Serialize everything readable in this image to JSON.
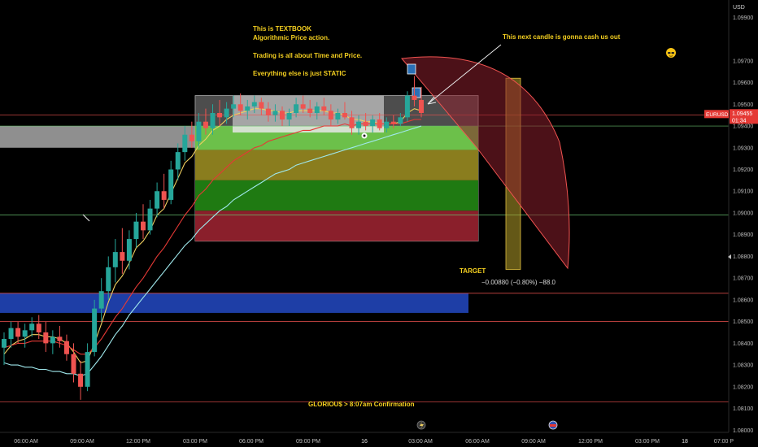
{
  "axis": {
    "currency_label": "USD",
    "y_ticks": [
      "1.09900",
      "1.09700",
      "1.09600",
      "1.09500",
      "1.09400",
      "1.09300",
      "1.09200",
      "1.09100",
      "1.09000",
      "1.08900",
      "1.08800",
      "1.08700",
      "1.08600",
      "1.08500",
      "1.08400",
      "1.08300",
      "1.08200",
      "1.08100",
      "1.08000"
    ],
    "x_ticks": [
      "06:00 AM",
      "09:00 AM",
      "12:00 PM",
      "03:00 PM",
      "06:00 PM",
      "09:00 PM",
      "16",
      "03:00 AM",
      "06:00 AM",
      "09:00 AM",
      "12:00 PM",
      "03:00 PM",
      "18",
      "07:00 P"
    ]
  },
  "price_tag": {
    "symbol": "EURUSD",
    "price": "1.09455",
    "countdown": "01:34"
  },
  "annotations": {
    "main_text": "This is TEXTBOOK\nAlgorithmic Price action.\n\nTrading is all about Time and Price.\n\nEverything else is just STATIC",
    "arrow_text": "This next candle is gonna cash us out",
    "target_label": "TARGET",
    "target_measure": "−0.00880 (−0.80%) −88.0",
    "confirmation_text": "GLORIOU$ > 8:07am Confirmation"
  },
  "colors": {
    "bull": "#26a69a",
    "bear": "#ef5350",
    "ma_red": "#e53935",
    "ma_yellow": "#f0d060",
    "ma_cyan": "#9fe8ec",
    "accent_text": "#f5d020",
    "blue_zone": "#1e3ea6",
    "hline": "#e53935"
  },
  "chart_data": {
    "type": "candlestick",
    "symbol": "EURUSD",
    "y_axis_range": [
      1.0799,
      1.0995
    ],
    "last_price": 1.09455,
    "candles": [
      {
        "o": 1.0838,
        "h": 1.0845,
        "l": 1.083,
        "c": 1.0842
      },
      {
        "o": 1.0842,
        "h": 1.085,
        "l": 1.0838,
        "c": 1.0847
      },
      {
        "o": 1.0847,
        "h": 1.085,
        "l": 1.084,
        "c": 1.0843
      },
      {
        "o": 1.0843,
        "h": 1.0849,
        "l": 1.0838,
        "c": 1.0846
      },
      {
        "o": 1.0846,
        "h": 1.0852,
        "l": 1.0843,
        "c": 1.0849
      },
      {
        "o": 1.0849,
        "h": 1.0853,
        "l": 1.0842,
        "c": 1.0845
      },
      {
        "o": 1.0845,
        "h": 1.085,
        "l": 1.0836,
        "c": 1.084
      },
      {
        "o": 1.084,
        "h": 1.0846,
        "l": 1.0835,
        "c": 1.0843
      },
      {
        "o": 1.0843,
        "h": 1.0848,
        "l": 1.0838,
        "c": 1.0841
      },
      {
        "o": 1.0841,
        "h": 1.0844,
        "l": 1.0832,
        "c": 1.0835
      },
      {
        "o": 1.0835,
        "h": 1.084,
        "l": 1.0822,
        "c": 1.0826
      },
      {
        "o": 1.0826,
        "h": 1.0832,
        "l": 1.0814,
        "c": 1.082
      },
      {
        "o": 1.082,
        "h": 1.084,
        "l": 1.0818,
        "c": 1.0836
      },
      {
        "o": 1.0836,
        "h": 1.086,
        "l": 1.0834,
        "c": 1.0856
      },
      {
        "o": 1.0856,
        "h": 1.087,
        "l": 1.085,
        "c": 1.0864
      },
      {
        "o": 1.0864,
        "h": 1.088,
        "l": 1.086,
        "c": 1.0875
      },
      {
        "o": 1.0875,
        "h": 1.0888,
        "l": 1.0868,
        "c": 1.0882
      },
      {
        "o": 1.0882,
        "h": 1.0893,
        "l": 1.0872,
        "c": 1.0878
      },
      {
        "o": 1.0878,
        "h": 1.0892,
        "l": 1.0874,
        "c": 1.0888
      },
      {
        "o": 1.0888,
        "h": 1.09,
        "l": 1.0884,
        "c": 1.0896
      },
      {
        "o": 1.0896,
        "h": 1.0904,
        "l": 1.0888,
        "c": 1.0892
      },
      {
        "o": 1.0892,
        "h": 1.0906,
        "l": 1.089,
        "c": 1.0902
      },
      {
        "o": 1.0902,
        "h": 1.0914,
        "l": 1.0898,
        "c": 1.091
      },
      {
        "o": 1.091,
        "h": 1.0918,
        "l": 1.0902,
        "c": 1.0906
      },
      {
        "o": 1.0906,
        "h": 1.0924,
        "l": 1.0904,
        "c": 1.092
      },
      {
        "o": 1.092,
        "h": 1.0932,
        "l": 1.0915,
        "c": 1.0928
      },
      {
        "o": 1.0928,
        "h": 1.094,
        "l": 1.0924,
        "c": 1.0936
      },
      {
        "o": 1.0936,
        "h": 1.0942,
        "l": 1.093,
        "c": 1.0933
      },
      {
        "o": 1.0933,
        "h": 1.0946,
        "l": 1.093,
        "c": 1.0942
      },
      {
        "o": 1.0942,
        "h": 1.0948,
        "l": 1.0936,
        "c": 1.0939
      },
      {
        "o": 1.0939,
        "h": 1.095,
        "l": 1.0936,
        "c": 1.0946
      },
      {
        "o": 1.0946,
        "h": 1.0952,
        "l": 1.094,
        "c": 1.0944
      },
      {
        "o": 1.0944,
        "h": 1.0951,
        "l": 1.0941,
        "c": 1.0948
      },
      {
        "o": 1.0948,
        "h": 1.0954,
        "l": 1.0944,
        "c": 1.095
      },
      {
        "o": 1.095,
        "h": 1.0955,
        "l": 1.0945,
        "c": 1.0947
      },
      {
        "o": 1.0947,
        "h": 1.0952,
        "l": 1.0943,
        "c": 1.0949
      },
      {
        "o": 1.0949,
        "h": 1.0954,
        "l": 1.0946,
        "c": 1.0951
      },
      {
        "o": 1.0951,
        "h": 1.0953,
        "l": 1.0945,
        "c": 1.0948
      },
      {
        "o": 1.0948,
        "h": 1.0951,
        "l": 1.0942,
        "c": 1.0945
      },
      {
        "o": 1.0945,
        "h": 1.095,
        "l": 1.0942,
        "c": 1.0947
      },
      {
        "o": 1.0947,
        "h": 1.0949,
        "l": 1.094,
        "c": 1.0943
      },
      {
        "o": 1.0943,
        "h": 1.0948,
        "l": 1.094,
        "c": 1.0946
      },
      {
        "o": 1.0946,
        "h": 1.0953,
        "l": 1.0944,
        "c": 1.095
      },
      {
        "o": 1.095,
        "h": 1.0954,
        "l": 1.0946,
        "c": 1.0948
      },
      {
        "o": 1.0948,
        "h": 1.0952,
        "l": 1.0944,
        "c": 1.0946
      },
      {
        "o": 1.0946,
        "h": 1.0951,
        "l": 1.0943,
        "c": 1.0949
      },
      {
        "o": 1.0949,
        "h": 1.0953,
        "l": 1.0945,
        "c": 1.0947
      },
      {
        "o": 1.0947,
        "h": 1.095,
        "l": 1.094,
        "c": 1.0943
      },
      {
        "o": 1.0943,
        "h": 1.0948,
        "l": 1.0941,
        "c": 1.0946
      },
      {
        "o": 1.0946,
        "h": 1.0951,
        "l": 1.0943,
        "c": 1.0944
      },
      {
        "o": 1.0944,
        "h": 1.0947,
        "l": 1.0936,
        "c": 1.0939
      },
      {
        "o": 1.0939,
        "h": 1.0945,
        "l": 1.0936,
        "c": 1.0942
      },
      {
        "o": 1.0942,
        "h": 1.0946,
        "l": 1.0938,
        "c": 1.094
      },
      {
        "o": 1.094,
        "h": 1.0945,
        "l": 1.0937,
        "c": 1.0943
      },
      {
        "o": 1.0943,
        "h": 1.0946,
        "l": 1.0938,
        "c": 1.0939
      },
      {
        "o": 1.0939,
        "h": 1.0944,
        "l": 1.0937,
        "c": 1.0942
      },
      {
        "o": 1.0942,
        "h": 1.0945,
        "l": 1.0939,
        "c": 1.0941
      },
      {
        "o": 1.0941,
        "h": 1.0946,
        "l": 1.094,
        "c": 1.0944
      },
      {
        "o": 1.0944,
        "h": 1.0956,
        "l": 1.0942,
        "c": 1.0954
      },
      {
        "o": 1.0954,
        "h": 1.0963,
        "l": 1.0949,
        "c": 1.0952
      },
      {
        "o": 1.0952,
        "h": 1.0958,
        "l": 1.0944,
        "c": 1.0946
      }
    ],
    "moving_averages": [
      {
        "color": "#f0d060",
        "values": [
          1.0835,
          1.0839,
          1.0841,
          1.0842,
          1.0844,
          1.0844,
          1.0843,
          1.0843,
          1.0842,
          1.084,
          1.0836,
          1.0831,
          1.0832,
          1.084,
          1.0849,
          1.0859,
          1.0867,
          1.0871,
          1.0877,
          1.0884,
          1.0887,
          1.0892,
          1.0899,
          1.0902,
          1.0909,
          1.0916,
          1.0923,
          1.0926,
          1.0931,
          1.0934,
          1.0938,
          1.094,
          1.0943,
          1.0945,
          1.0946,
          1.0947,
          1.0948,
          1.0948,
          1.0947,
          1.0947,
          1.0946,
          1.0946,
          1.0947,
          1.0947,
          1.0947,
          1.0947,
          1.0947,
          1.0946,
          1.0946,
          1.0945,
          1.0943,
          1.0943,
          1.0942,
          1.0942,
          1.0941,
          1.0941,
          1.0941,
          1.0942,
          1.0946,
          1.0948,
          1.0947
        ]
      },
      {
        "color": "#e53935",
        "values": [
          1.0838,
          1.0839,
          1.084,
          1.084,
          1.0841,
          1.0841,
          1.0841,
          1.0841,
          1.084,
          1.0839,
          1.0837,
          1.0835,
          1.0835,
          1.0838,
          1.0842,
          1.0847,
          1.0852,
          1.0856,
          1.0861,
          1.0866,
          1.087,
          1.0875,
          1.088,
          1.0884,
          1.0889,
          1.0894,
          1.0899,
          1.0903,
          1.0908,
          1.0911,
          1.0915,
          1.0918,
          1.0921,
          1.0924,
          1.0926,
          1.0928,
          1.093,
          1.0931,
          1.0933,
          1.0934,
          1.0935,
          1.0936,
          1.0937,
          1.0938,
          1.0938,
          1.0939,
          1.094,
          1.094,
          1.094,
          1.0941,
          1.094,
          1.0941,
          1.0941,
          1.0941,
          1.0941,
          1.0941,
          1.0941,
          1.0941,
          1.0942,
          1.0943,
          1.0943
        ]
      },
      {
        "color": "#9fe8ec",
        "values": [
          1.0831,
          1.083,
          1.083,
          1.0829,
          1.0829,
          1.0828,
          1.0828,
          1.0827,
          1.0827,
          1.0826,
          1.0826,
          1.0825,
          1.0826,
          1.083,
          1.0834,
          1.0839,
          1.0844,
          1.0848,
          1.0853,
          1.0857,
          1.0861,
          1.0865,
          1.0869,
          1.0873,
          1.0877,
          1.0881,
          1.0885,
          1.0888,
          1.0892,
          1.0895,
          1.0898,
          1.0901,
          1.0903,
          1.0906,
          1.0908,
          1.091,
          1.0912,
          1.0914,
          1.0916,
          1.0918,
          1.0919,
          1.092,
          1.0922,
          1.0923,
          1.0924,
          1.0925,
          1.0926,
          1.0927,
          1.0928,
          1.0929,
          1.093,
          1.0931,
          1.0932,
          1.0933,
          1.0934,
          1.0935,
          1.0936,
          1.0937,
          1.0938,
          1.0939,
          1.094
        ]
      }
    ],
    "zones": [
      {
        "name": "grey-zone",
        "y1": 1.094,
        "y2": 1.093
      },
      {
        "name": "blue-zone",
        "y1": 1.0863,
        "y2": 1.0854
      },
      {
        "name": "green-light",
        "y1": 1.094,
        "y2": 1.0929
      },
      {
        "name": "olive",
        "y1": 1.0929,
        "y2": 1.0915
      },
      {
        "name": "green-dark",
        "y1": 1.0915,
        "y2": 1.0901
      },
      {
        "name": "maroon",
        "y1": 1.0901,
        "y2": 1.0887
      },
      {
        "name": "consolidation",
        "y1": 1.0954,
        "y2": 1.0937
      }
    ],
    "horizontal_lines": [
      {
        "y": 1.0945,
        "color": "#ef5350"
      },
      {
        "y": 1.094,
        "color": "#66bb6a"
      },
      {
        "y": 1.0899,
        "color": "#66bb6a"
      },
      {
        "y": 1.0863,
        "color": "#ef5350"
      },
      {
        "y": 1.085,
        "color": "#ef5350"
      },
      {
        "y": 1.0813,
        "color": "#ef5350"
      }
    ],
    "target_measure": {
      "from": 1.0962,
      "to": 1.0874,
      "change": -0.0088,
      "change_pct": -0.8,
      "pips": -88.0
    }
  }
}
